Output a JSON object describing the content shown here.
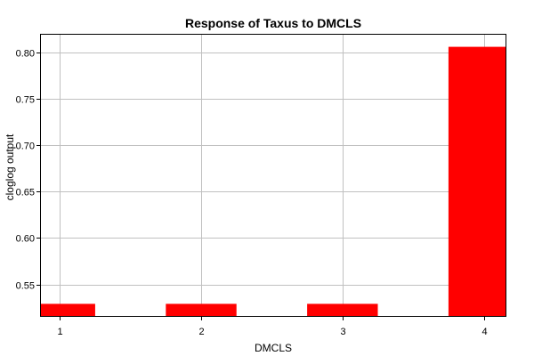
{
  "chart_data": {
    "type": "bar",
    "title": "Response of Taxus to DMCLS",
    "xlabel": "DMCLS",
    "ylabel": "cloglog output",
    "categories": [
      "1",
      "2",
      "3",
      "4"
    ],
    "x": [
      1,
      2,
      3,
      4
    ],
    "values": [
      0.529,
      0.529,
      0.529,
      0.806
    ],
    "xlim": [
      0.86,
      4.16
    ],
    "ylim": [
      0.515,
      0.82
    ],
    "yticks": [
      0.55,
      0.6,
      0.65,
      0.7,
      0.75,
      0.8
    ],
    "ytick_labels": [
      "0.55",
      "0.60",
      "0.65",
      "0.70",
      "0.75",
      "0.80"
    ],
    "grid": true,
    "legend": "none",
    "bar_color": "#ff0000",
    "grid_color": "#c0c0c0"
  }
}
